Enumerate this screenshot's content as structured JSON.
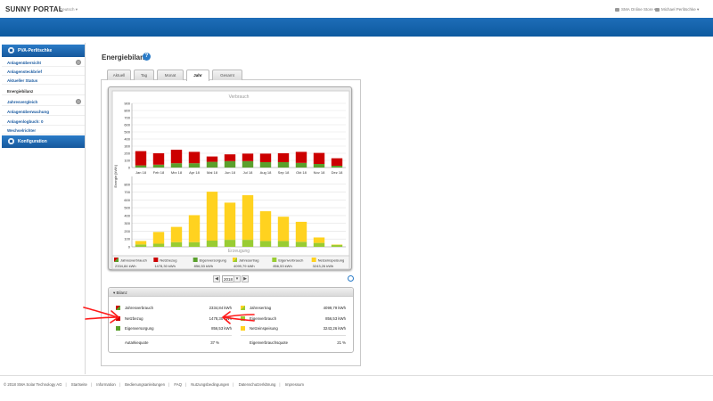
{
  "header": {
    "logo": "SUNNY PORTAL",
    "language": "Deutsch",
    "store": "SMA Online Store",
    "user": "Michael Perlitschke"
  },
  "sidebar": {
    "plant_name": "PVA-Perlitschke",
    "items": [
      {
        "label": "Anlagenübersicht",
        "has_icon": true
      },
      {
        "label": "Anlagensteckbrief",
        "has_icon": false
      },
      {
        "label": "Aktueller Status",
        "has_icon": false
      },
      {
        "label": "Energiebilanz",
        "has_icon": false,
        "active": true
      },
      {
        "label": "Jahresvergleich",
        "has_icon": true
      },
      {
        "label": "Anlagenüberwachung",
        "has_icon": false
      },
      {
        "label": "Anlagenlogbuch: 0",
        "has_icon": false
      },
      {
        "label": "Wechselrichter",
        "has_icon": false
      }
    ],
    "config_label": "Konfiguration"
  },
  "main": {
    "title": "Energiebilanz",
    "help_glyph": "?",
    "tabs": [
      "Aktuell",
      "Tag",
      "Monat",
      "Jahr",
      "Gesamt"
    ],
    "active_tab": "Jahr"
  },
  "year_selector": {
    "year": "2018",
    "prev_glyph": "◀",
    "next_glyph": "▶",
    "dropdown_glyph": "▾"
  },
  "chart_data": {
    "type": "bar",
    "categories": [
      "Jan 18",
      "Feb 18",
      "Mrz 18",
      "Apr 18",
      "Mai 18",
      "Jun 18",
      "Jul 18",
      "Aug 18",
      "Sep 18",
      "Okt 18",
      "Nov 18",
      "Dez 18"
    ],
    "top_panel": {
      "title": "Verbrauch",
      "ylim": [
        0,
        900
      ],
      "yticks": [
        0,
        100,
        200,
        300,
        400,
        500,
        600,
        700,
        800,
        900
      ],
      "series": [
        {
          "name": "Eigenversorgung",
          "color": "#5aa02c",
          "values": [
            30,
            40,
            60,
            60,
            80,
            90,
            90,
            75,
            75,
            65,
            50,
            25
          ]
        },
        {
          "name": "Netzbezug",
          "color": "#cc0000",
          "values": [
            200,
            160,
            190,
            160,
            75,
            95,
            105,
            120,
            125,
            155,
            155,
            105
          ]
        }
      ]
    },
    "bottom_panel": {
      "title": "Erzeugung",
      "ylim": [
        0,
        900
      ],
      "yticks": [
        0,
        100,
        200,
        300,
        400,
        500,
        600,
        700,
        800
      ],
      "series": [
        {
          "name": "Eigenverbrauch",
          "color": "#99cc33",
          "values": [
            30,
            40,
            60,
            60,
            80,
            90,
            90,
            75,
            75,
            65,
            50,
            25
          ]
        },
        {
          "name": "Netzeinspeisung",
          "color": "#ffd21f",
          "values": [
            45,
            150,
            195,
            345,
            625,
            475,
            570,
            380,
            310,
            255,
            70,
            5
          ]
        }
      ]
    },
    "ylabel": "Energie [kWh]",
    "legend": [
      {
        "name": "Jahresverbrauch",
        "value": "2334,84 kWh",
        "color": "#cc0000",
        "color2": "#5aa02c"
      },
      {
        "name": "Netzbezug",
        "value": "1478,30 kWh",
        "color": "#cc0000"
      },
      {
        "name": "Eigenversorgung",
        "value": "856,53 kWh",
        "color": "#5aa02c"
      },
      {
        "name": "Jahresertrag",
        "value": "4099,79 kWh",
        "color": "#ffd21f",
        "color2": "#99cc33"
      },
      {
        "name": "Eigenverbrauch",
        "value": "856,53 kWh",
        "color": "#99cc33"
      },
      {
        "name": "Netzeinspeisung",
        "value": "3243,26 kWh",
        "color": "#ffd21f"
      }
    ]
  },
  "bilanz": {
    "header": "▾ Bilanz",
    "left": [
      {
        "label": "Jahresverbrauch",
        "value": "2334,84 kWh",
        "color": "#cc0000",
        "color2": "#5aa02c"
      },
      {
        "label": "Netzbezug",
        "value": "1478,30 kWh",
        "color": "#cc0000"
      },
      {
        "label": "Eigenversorgung",
        "value": "856,53 kWh",
        "color": "#5aa02c"
      }
    ],
    "right": [
      {
        "label": "Jahresertrag",
        "value": "4099,79 kWh",
        "color": "#ffd21f",
        "color2": "#99cc33"
      },
      {
        "label": "Eigenverbrauch",
        "value": "856,53 kWh",
        "color": "#99cc33"
      },
      {
        "label": "Netzeinspeisung",
        "value": "3243,26 kWh",
        "color": "#ffd21f"
      }
    ],
    "quote_left": {
      "label": "Autarkiequote",
      "value": "37 %"
    },
    "quote_right": {
      "label": "Eigenverbrauchsquote",
      "value": "21 %"
    }
  },
  "footer": {
    "links": [
      "© 2018 SMA Solar Technology AG",
      "Startseite",
      "Information",
      "Bedienungsanleitungen",
      "FAQ",
      "Nutzungsbedingungen",
      "Datenschutzerklärung",
      "Impressum"
    ]
  }
}
